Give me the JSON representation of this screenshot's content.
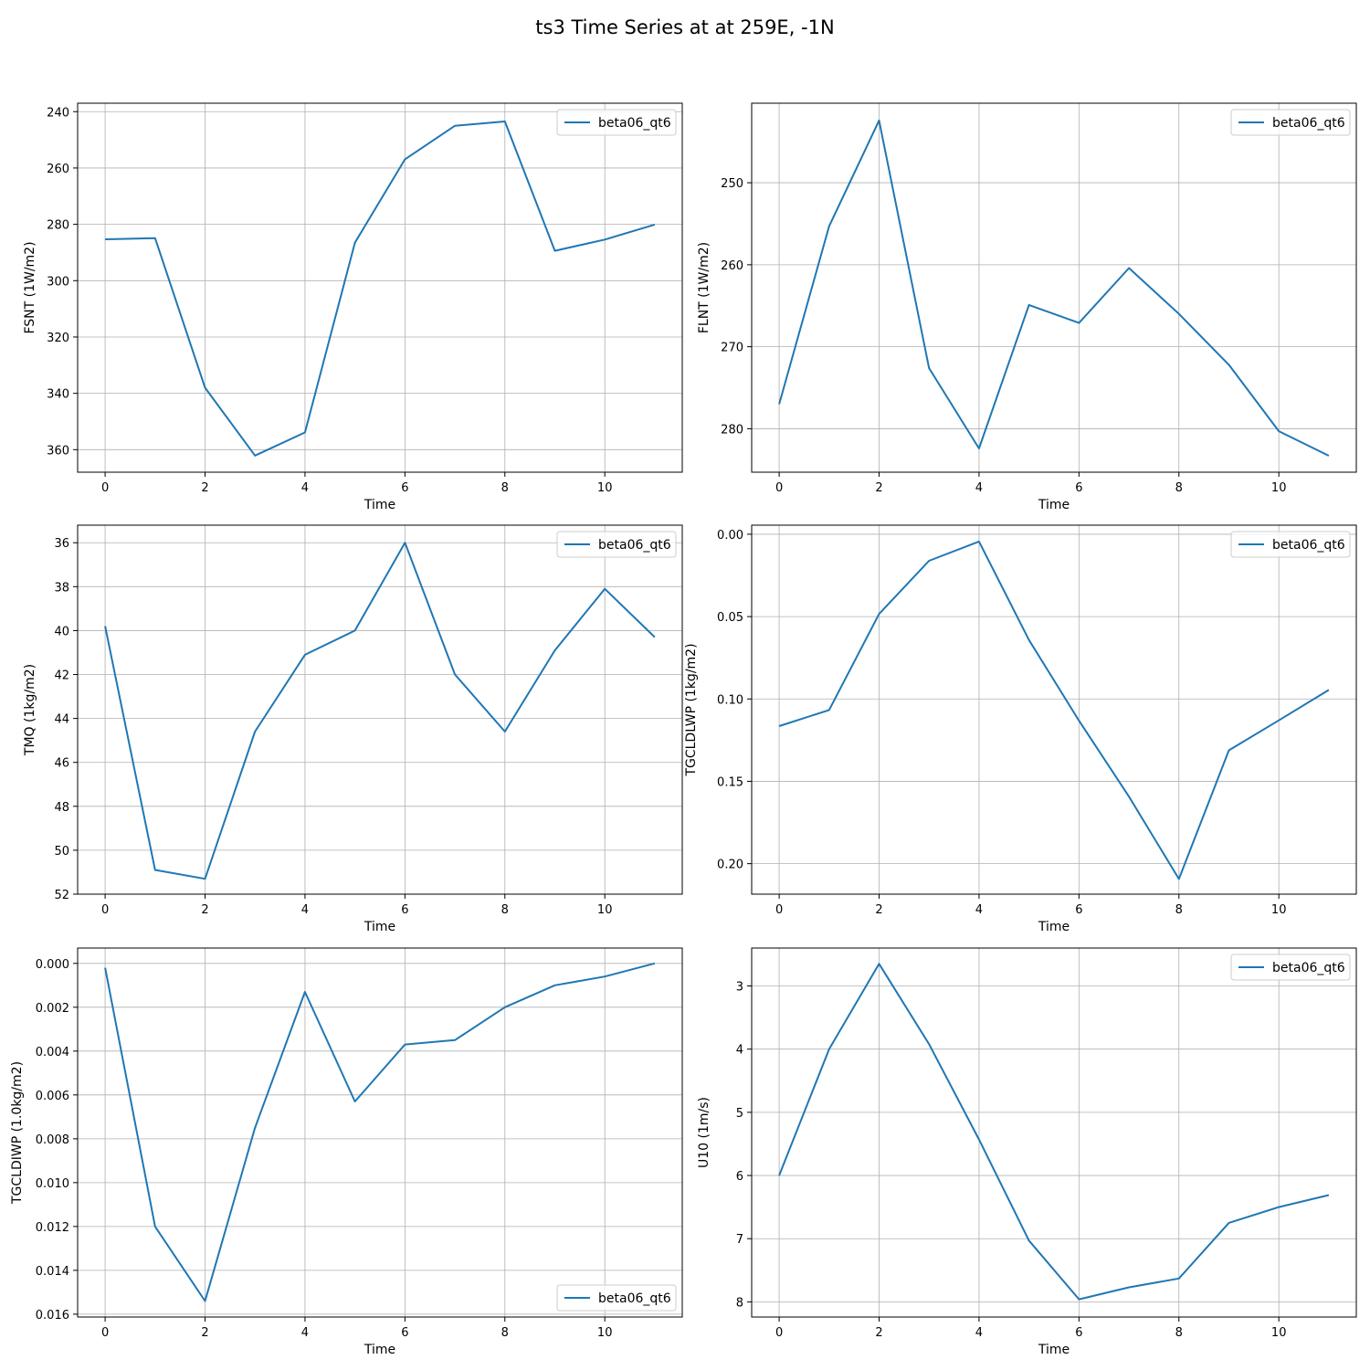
{
  "figure": {
    "suptitle": "ts3 Time Series at at 259E, -1N",
    "line_color": "#1f77b4",
    "grid_color": "#b0b0b0"
  },
  "chart_data": [
    {
      "type": "line",
      "title": "",
      "xlabel": "Time",
      "ylabel": "FSNT (1W/m2)",
      "x": [
        0,
        1,
        2,
        3,
        4,
        5,
        6,
        7,
        8,
        9,
        10,
        11
      ],
      "xlim": [
        -0.55,
        11.55
      ],
      "xticks": [
        0,
        2,
        4,
        6,
        8,
        10
      ],
      "ylim": [
        368,
        237
      ],
      "yticks": [
        240,
        260,
        280,
        300,
        320,
        340,
        360
      ],
      "y_inverted": true,
      "grid": true,
      "legend_loc": "upper right",
      "series": [
        {
          "name": "beta06_qt6",
          "values": [
            285.3,
            284.9,
            338.0,
            362.1,
            353.9,
            286.5,
            256.9,
            245.0,
            243.5,
            289.4,
            285.4,
            280.1
          ]
        }
      ]
    },
    {
      "type": "line",
      "title": "",
      "xlabel": "Time",
      "ylabel": "FLNT (1W/m2)",
      "x": [
        0,
        1,
        2,
        3,
        4,
        5,
        6,
        7,
        8,
        9,
        10,
        11
      ],
      "xlim": [
        -0.55,
        11.55
      ],
      "xticks": [
        0,
        2,
        4,
        6,
        8,
        10
      ],
      "yticks": [
        250,
        260,
        270,
        280
      ],
      "ylim": [
        285.3,
        240.3
      ],
      "y_inverted": true,
      "grid": true,
      "legend_loc": "upper right",
      "series": [
        {
          "name": "beta06_qt6",
          "values": [
            277.0,
            255.3,
            242.4,
            272.6,
            282.4,
            264.9,
            267.1,
            260.4,
            266.0,
            272.2,
            280.3,
            283.3
          ]
        }
      ]
    },
    {
      "type": "line",
      "title": "",
      "xlabel": "Time",
      "ylabel": "TMQ (1kg/m2)",
      "x": [
        0,
        1,
        2,
        3,
        4,
        5,
        6,
        7,
        8,
        9,
        10,
        11
      ],
      "xlim": [
        -0.55,
        11.55
      ],
      "xticks": [
        0,
        2,
        4,
        6,
        8,
        10
      ],
      "ylim": [
        52,
        35.2
      ],
      "yticks": [
        36,
        38,
        40,
        42,
        44,
        46,
        48,
        50,
        52
      ],
      "y_inverted": true,
      "grid": true,
      "legend_loc": "upper right",
      "series": [
        {
          "name": "beta06_qt6",
          "values": [
            39.8,
            50.9,
            51.3,
            44.6,
            41.1,
            40.0,
            36.0,
            42.0,
            44.6,
            40.9,
            38.1,
            40.3
          ]
        }
      ]
    },
    {
      "type": "line",
      "title": "",
      "xlabel": "Time",
      "ylabel": "TGCLDLWP (1kg/m2)",
      "x": [
        0,
        1,
        2,
        3,
        4,
        5,
        6,
        7,
        8,
        9,
        10,
        11
      ],
      "xlim": [
        -0.55,
        11.55
      ],
      "xticks": [
        0,
        2,
        4,
        6,
        8,
        10
      ],
      "ylim": [
        0.2185,
        -0.0055
      ],
      "yticks": [
        0.0,
        0.05,
        0.1,
        0.15,
        0.2
      ],
      "ytick_labels": [
        "0.00",
        "0.05",
        "0.10",
        "0.15",
        "0.20"
      ],
      "y_inverted": true,
      "grid": true,
      "legend_loc": "upper right",
      "series": [
        {
          "name": "beta06_qt6",
          "values": [
            0.1165,
            0.1067,
            0.0484,
            0.0161,
            0.0044,
            0.0642,
            0.1132,
            0.1593,
            0.2093,
            0.1312,
            0.113,
            0.0945
          ]
        }
      ]
    },
    {
      "type": "line",
      "title": "",
      "xlabel": "Time",
      "ylabel": "TGCLDIWP (1.0kg/m2)",
      "x": [
        0,
        1,
        2,
        3,
        4,
        5,
        6,
        7,
        8,
        9,
        10,
        11
      ],
      "xlim": [
        -0.55,
        11.55
      ],
      "xticks": [
        0,
        2,
        4,
        6,
        8,
        10
      ],
      "ylim": [
        0.01613,
        -0.0007
      ],
      "yticks": [
        0.0,
        0.002,
        0.004,
        0.006,
        0.008,
        0.01,
        0.012,
        0.014,
        0.016
      ],
      "ytick_labels": [
        "0.000",
        "0.002",
        "0.004",
        "0.006",
        "0.008",
        "0.010",
        "0.012",
        "0.014",
        "0.016"
      ],
      "y_inverted": true,
      "grid": true,
      "legend_loc": "lower right",
      "series": [
        {
          "name": "beta06_qt6",
          "values": [
            0.0002,
            0.012,
            0.0154,
            0.0075,
            0.0013,
            0.0063,
            0.0037,
            0.0035,
            0.002,
            0.001,
            0.0006,
            0.0
          ]
        }
      ]
    },
    {
      "type": "line",
      "title": "",
      "xlabel": "Time",
      "ylabel": "U10 (1m/s)",
      "x": [
        0,
        1,
        2,
        3,
        4,
        5,
        6,
        7,
        8,
        9,
        10,
        11
      ],
      "xlim": [
        -0.55,
        11.55
      ],
      "xticks": [
        0,
        2,
        4,
        6,
        8,
        10
      ],
      "ylim": [
        8.24,
        2.4
      ],
      "yticks": [
        3,
        4,
        5,
        6,
        7,
        8
      ],
      "y_inverted": true,
      "grid": true,
      "legend_loc": "upper right",
      "series": [
        {
          "name": "beta06_qt6",
          "values": [
            6.0,
            4.0,
            2.65,
            3.92,
            5.43,
            7.03,
            7.96,
            7.77,
            7.63,
            6.75,
            6.5,
            6.31
          ]
        }
      ]
    }
  ]
}
